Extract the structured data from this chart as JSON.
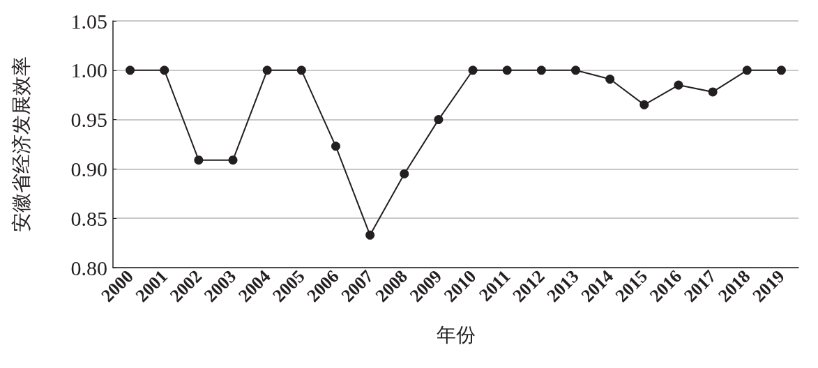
{
  "chart_data": {
    "type": "line",
    "xlabel": "年份",
    "ylabel": "安徽省经济发展效率",
    "categories": [
      "2000",
      "2001",
      "2002",
      "2003",
      "2004",
      "2005",
      "2006",
      "2007",
      "2008",
      "2009",
      "2010",
      "2011",
      "2012",
      "2013",
      "2014",
      "2015",
      "2016",
      "2017",
      "2018",
      "2019"
    ],
    "series": [
      {
        "color": "#231f20",
        "values": [
          1.0,
          1.0,
          0.909,
          0.909,
          1.0,
          1.0,
          0.923,
          0.833,
          0.895,
          0.95,
          1.0,
          1.0,
          1.0,
          1.0,
          0.991,
          0.965,
          0.985,
          0.978,
          1.0,
          1.0
        ]
      }
    ],
    "ylim": [
      0.8,
      1.05
    ],
    "yticks": [
      {
        "value": 0.8,
        "label": "0.80"
      },
      {
        "value": 0.85,
        "label": "0.85"
      },
      {
        "value": 0.9,
        "label": "0.90"
      },
      {
        "value": 0.95,
        "label": "0.95"
      },
      {
        "value": 1.0,
        "label": "1.00"
      },
      {
        "value": 1.05,
        "label": "1.05"
      }
    ],
    "grid": "y",
    "marker": "circle",
    "line_style": "solid"
  }
}
